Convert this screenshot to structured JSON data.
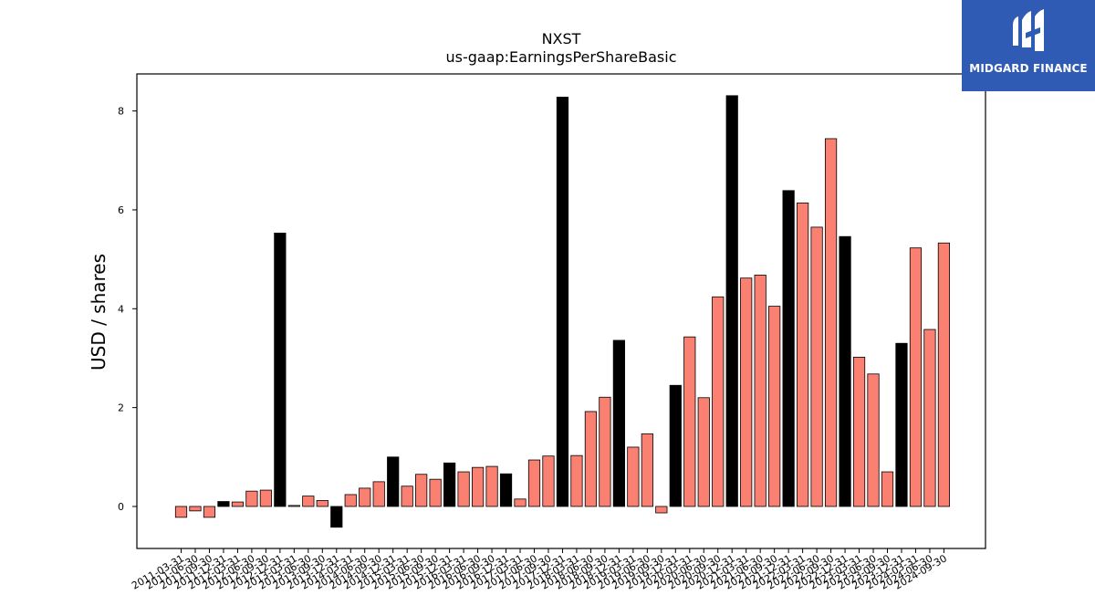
{
  "chart_data": {
    "type": "bar",
    "title": "NXST",
    "subtitle": "us-gaap:EarningsPerShareBasic",
    "xlabel": "",
    "ylabel": "USD / shares",
    "ylim": [
      -0.85,
      8.75
    ],
    "yticks": [
      "0",
      "2",
      "4",
      "6",
      "8"
    ],
    "grid": false,
    "categories": [
      "2011-03-31",
      "2011-06-30",
      "2011-09-30",
      "2011-12-31",
      "2012-03-31",
      "2012-06-30",
      "2012-09-30",
      "2012-12-31",
      "2013-03-31",
      "2013-06-30",
      "2013-09-30",
      "2013-12-31",
      "2014-03-31",
      "2014-06-30",
      "2014-09-30",
      "2014-12-31",
      "2015-03-31",
      "2015-06-30",
      "2015-09-30",
      "2015-12-31",
      "2016-03-31",
      "2016-06-30",
      "2016-09-30",
      "2016-12-31",
      "2017-03-31",
      "2017-06-30",
      "2017-09-30",
      "2017-12-31",
      "2018-03-31",
      "2018-06-30",
      "2018-09-30",
      "2018-12-31",
      "2019-03-31",
      "2019-06-30",
      "2019-09-30",
      "2019-12-31",
      "2020-03-31",
      "2020-06-30",
      "2020-09-30",
      "2020-12-31",
      "2021-03-31",
      "2021-06-30",
      "2021-09-30",
      "2021-12-31",
      "2022-03-31",
      "2022-06-30",
      "2022-09-30",
      "2022-12-31",
      "2023-03-31",
      "2023-06-30",
      "2023-09-30",
      "2023-12-31",
      "2024-03-31",
      "2024-06-30",
      "2024-09-30"
    ],
    "values": [
      -0.22,
      -0.09,
      -0.22,
      0.1,
      0.09,
      0.31,
      0.33,
      5.53,
      0.02,
      0.21,
      0.12,
      -0.42,
      0.24,
      0.37,
      0.5,
      1.0,
      0.41,
      0.65,
      0.55,
      0.88,
      0.7,
      0.79,
      0.81,
      0.66,
      0.15,
      0.94,
      1.02,
      8.28,
      1.03,
      1.92,
      2.21,
      3.36,
      1.2,
      1.47,
      -0.13,
      2.45,
      3.43,
      2.2,
      4.24,
      8.31,
      4.62,
      4.68,
      4.05,
      6.39,
      6.14,
      5.65,
      7.44,
      5.46,
      3.02,
      2.68,
      0.7,
      3.3,
      5.23,
      3.58,
      5.33
    ],
    "is_annual": [
      false,
      false,
      false,
      true,
      false,
      false,
      false,
      true,
      false,
      false,
      false,
      true,
      false,
      false,
      false,
      true,
      false,
      false,
      false,
      true,
      false,
      false,
      false,
      true,
      false,
      false,
      false,
      true,
      false,
      false,
      false,
      true,
      false,
      false,
      false,
      true,
      false,
      false,
      false,
      true,
      false,
      false,
      false,
      true,
      false,
      false,
      false,
      true,
      false,
      false,
      false,
      true,
      false,
      false,
      false
    ],
    "colors": {
      "quarterly_fill": "#fa8072",
      "annual_fill": "#000000",
      "edge": "#000000"
    }
  },
  "logo": {
    "text": "MIDGARD FINANCE",
    "background": "#2f5bb5"
  }
}
